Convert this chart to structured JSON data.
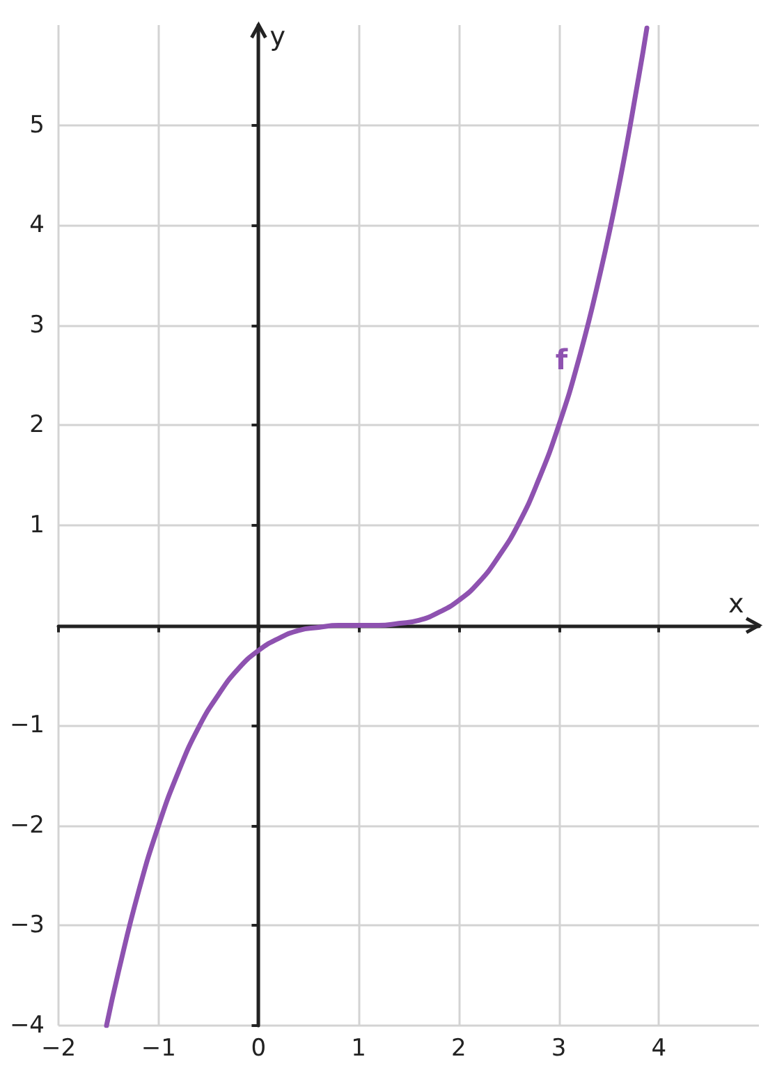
{
  "chart_data": {
    "type": "line",
    "xlabel": "x",
    "ylabel": "y",
    "xlim": [
      -2,
      5
    ],
    "ylim": [
      -4,
      6
    ],
    "xticks": [
      {
        "value": -2,
        "label": "−2"
      },
      {
        "value": -1,
        "label": "−1"
      },
      0,
      1,
      2,
      3,
      4
    ],
    "yticks": [
      {
        "value": -4,
        "label": "−4"
      },
      {
        "value": -3,
        "label": "−3"
      },
      {
        "value": -2,
        "label": "−2"
      },
      {
        "value": -1,
        "label": "−1"
      },
      1,
      2,
      3,
      4,
      5
    ],
    "grid": true,
    "legend": false,
    "marker": "none",
    "line_style": "solid",
    "series": [
      {
        "name": "f",
        "color": "#8e52b0",
        "x": [
          -1.52,
          -1.4,
          -1.2,
          -1,
          -0.8,
          -0.6,
          -0.4,
          -0.2,
          0,
          0.2,
          0.4,
          0.6,
          0.8,
          1,
          1.2,
          1.4,
          1.6,
          1.8,
          2,
          2.2,
          2.4,
          2.6,
          2.8,
          3,
          3.2,
          3.4,
          3.6,
          3.8,
          3.88
        ],
        "values": [
          -4,
          -3.46,
          -2.66,
          -2,
          -1.46,
          -1.02,
          -0.69,
          -0.43,
          -0.25,
          -0.13,
          -0.05,
          -0.02,
          0,
          0,
          0,
          0.02,
          0.05,
          0.13,
          0.25,
          0.43,
          0.69,
          1.02,
          1.46,
          2,
          2.66,
          3.46,
          4.39,
          5.49,
          5.97
        ]
      }
    ]
  }
}
